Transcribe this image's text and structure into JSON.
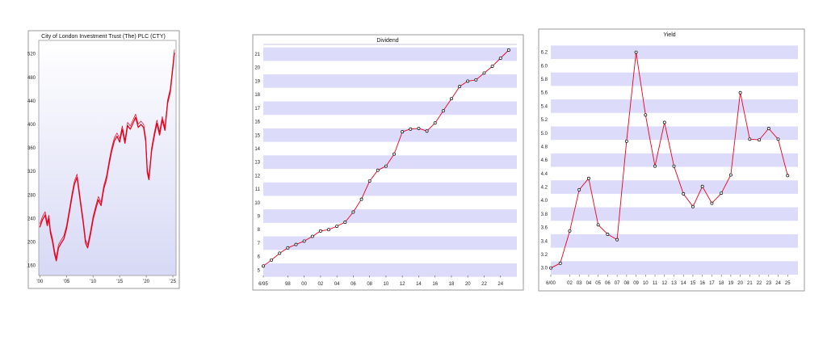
{
  "chart_data": [
    {
      "type": "line",
      "title": "City of London Investment Trust (The) PLC (CTY)",
      "xlabel": "",
      "ylabel": "",
      "x_ticks": [
        "'00",
        "'05",
        "'10",
        "'15",
        "'20",
        "'25"
      ],
      "x_tick_years": [
        2000,
        2005,
        2010,
        2015,
        2020,
        2025
      ],
      "y_ticks": [
        160,
        200,
        240,
        280,
        320,
        360,
        400,
        440,
        480,
        520
      ],
      "xlim": [
        1999.8,
        2025.6
      ],
      "ylim": [
        143,
        543
      ],
      "grid": false,
      "colors": {
        "line": "#e8001c",
        "background_top": "#ffffff",
        "background_bottom": "#d7d9f5"
      },
      "series": [
        {
          "x": [
            2000.0,
            2000.5,
            2001.0,
            2001.4,
            2001.7,
            2002.0,
            2002.4,
            2002.8,
            2003.1,
            2003.5,
            2004.0,
            2004.5,
            2005.0,
            2005.5,
            2006.0,
            2006.5,
            2007.0,
            2007.3,
            2007.7,
            2008.2,
            2008.6,
            2009.0,
            2009.5,
            2010.0,
            2010.5,
            2011.0,
            2011.5,
            2012.0,
            2012.5,
            2013.0,
            2013.5,
            2014.0,
            2014.5,
            2015.0,
            2015.5,
            2016.0,
            2016.5,
            2017.0,
            2017.5,
            2018.0,
            2018.5,
            2019.0,
            2019.5,
            2019.9,
            2020.2,
            2020.5,
            2021.0,
            2021.5,
            2022.0,
            2022.5,
            2023.0,
            2023.5,
            2024.0,
            2024.5,
            2025.0,
            2025.3
          ],
          "values": [
            225,
            238,
            246,
            228,
            240,
            215,
            200,
            178,
            168,
            190,
            198,
            205,
            222,
            248,
            275,
            298,
            310,
            290,
            262,
            230,
            198,
            190,
            212,
            238,
            256,
            272,
            262,
            290,
            306,
            332,
            355,
            372,
            380,
            370,
            392,
            368,
            398,
            392,
            402,
            412,
            395,
            400,
            395,
            372,
            318,
            306,
            355,
            380,
            402,
            382,
            408,
            390,
            436,
            455,
            496,
            522
          ]
        }
      ]
    },
    {
      "type": "line",
      "title": "Dividend",
      "xlabel": "",
      "ylabel": "",
      "x_ticks": [
        "6/95",
        "98",
        "00",
        "02",
        "04",
        "06",
        "08",
        "10",
        "12",
        "14",
        "16",
        "18",
        "20",
        "22",
        "24"
      ],
      "x_tick_years": [
        1995,
        1998,
        2000,
        2002,
        2004,
        2006,
        2008,
        2010,
        2012,
        2014,
        2016,
        2018,
        2020,
        2022,
        2024
      ],
      "y_ticks": [
        5,
        6,
        7,
        8,
        9,
        10,
        11,
        12,
        13,
        14,
        15,
        16,
        17,
        18,
        19,
        20,
        21
      ],
      "xlim": [
        1995,
        2026
      ],
      "ylim": [
        4.6,
        21.6
      ],
      "grid": true,
      "colors": {
        "line": "#e8001c",
        "band": "#dcdcfa",
        "marker": "#000000"
      },
      "series": [
        {
          "x": [
            1995,
            1996,
            1997,
            1998,
            1999,
            2000,
            2001,
            2002,
            2003,
            2004,
            2005,
            2006,
            2007,
            2008,
            2009,
            2010,
            2011,
            2012,
            2013,
            2014,
            2015,
            2016,
            2017,
            2018,
            2019,
            2020,
            2021,
            2022,
            2023,
            2024,
            2025
          ],
          "values": [
            5.3,
            5.75,
            6.25,
            6.65,
            6.9,
            7.15,
            7.5,
            7.9,
            8.0,
            8.25,
            8.55,
            9.3,
            10.25,
            11.6,
            12.4,
            12.7,
            13.6,
            15.25,
            15.45,
            15.5,
            15.3,
            15.9,
            16.8,
            17.7,
            18.6,
            19.0,
            19.1,
            19.6,
            20.1,
            20.7,
            21.3
          ]
        }
      ]
    },
    {
      "type": "line",
      "title": "Yield",
      "xlabel": "",
      "ylabel": "",
      "x_ticks": [
        "6/00",
        "02",
        "03",
        "04",
        "05",
        "06",
        "07",
        "08",
        "09",
        "10",
        "11",
        "12",
        "13",
        "14",
        "15",
        "16",
        "17",
        "18",
        "19",
        "20",
        "21",
        "22",
        "23",
        "24",
        "25"
      ],
      "x_tick_years": [
        2000,
        2002,
        2003,
        2004,
        2005,
        2006,
        2007,
        2008,
        2009,
        2010,
        2011,
        2012,
        2013,
        2014,
        2015,
        2016,
        2017,
        2018,
        2019,
        2020,
        2021,
        2022,
        2023,
        2024,
        2025
      ],
      "y_ticks": [
        3.0,
        3.2,
        3.4,
        3.6,
        3.8,
        4.0,
        4.2,
        4.4,
        4.6,
        4.8,
        5.0,
        5.2,
        5.4,
        5.6,
        5.8,
        6.0,
        6.2
      ],
      "y_tick_labels": [
        "3.0",
        "3.2",
        "3.4",
        "3.6",
        "3.8",
        "4.0",
        "4.2",
        "4.4",
        "4.6",
        "4.8",
        "5.0",
        "5.2",
        "5.4",
        "5.6",
        "5.8",
        "6.0",
        "6.2"
      ],
      "xlim": [
        2000,
        2026
      ],
      "ylim": [
        2.9,
        6.4
      ],
      "grid": true,
      "colors": {
        "line": "#e8001c",
        "band": "#dcdcfa",
        "marker": "#000000"
      },
      "series": [
        {
          "x": [
            2000,
            2001,
            2002,
            2003,
            2004,
            2005,
            2006,
            2007,
            2008,
            2009,
            2010,
            2011,
            2012,
            2013,
            2014,
            2015,
            2016,
            2017,
            2018,
            2019,
            2020,
            2021,
            2022,
            2023,
            2024,
            2025
          ],
          "values": [
            3.0,
            3.07,
            3.55,
            4.16,
            4.33,
            3.64,
            3.5,
            3.42,
            4.88,
            6.2,
            5.27,
            4.51,
            5.16,
            4.51,
            4.1,
            3.91,
            4.21,
            3.96,
            4.11,
            4.38,
            5.6,
            4.91,
            4.9,
            5.07,
            4.91,
            4.37
          ]
        }
      ]
    }
  ]
}
